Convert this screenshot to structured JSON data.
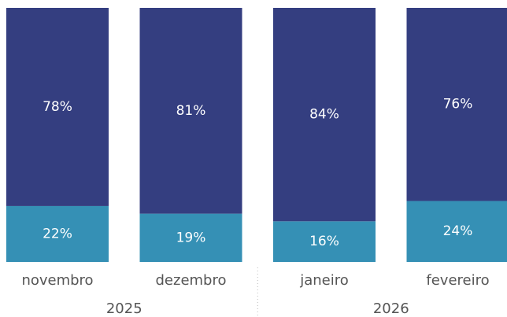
{
  "chart_data": {
    "type": "stacked_bar_100",
    "categories": [
      "novembro",
      "dezembro",
      "janeiro",
      "fevereiro"
    ],
    "x_groups": [
      "2025",
      "2026"
    ],
    "series": [
      {
        "color": "#3590b5",
        "values": [
          22,
          19,
          16,
          24
        ],
        "value_labels": [
          "22%",
          "19%",
          "16%",
          "24%"
        ]
      },
      {
        "color": "#343e80",
        "values": [
          78,
          81,
          84,
          76
        ],
        "value_labels": [
          "78%",
          "81%",
          "84%",
          "76%"
        ]
      }
    ],
    "ylim": [
      0,
      100
    ]
  }
}
